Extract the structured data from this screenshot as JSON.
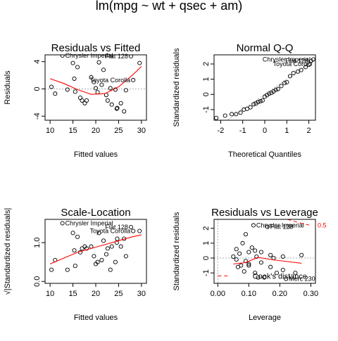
{
  "main_title": "lm(mpg ~ wt + qsec + am)",
  "chart_data": [
    {
      "type": "scatter",
      "title": "Residuals vs Fitted",
      "xlabel": "Fitted values",
      "ylabel": "Residuals",
      "xlim": [
        8.9,
        31.1
      ],
      "ylim": [
        -4.6,
        5.0
      ],
      "xticks": [
        10,
        15,
        20,
        25,
        30
      ],
      "yticks": [
        -4,
        0,
        4
      ],
      "ref_line": {
        "y": 0,
        "style": "dotted"
      },
      "points": [
        {
          "x": 10.3,
          "y": 0.3
        },
        {
          "x": 11.1,
          "y": -0.7
        },
        {
          "x": 12.7,
          "y": 4.9,
          "label": "Chrysler Imperial"
        },
        {
          "x": 13.8,
          "y": -0.1
        },
        {
          "x": 15.0,
          "y": 3.8
        },
        {
          "x": 15.3,
          "y": 1.5
        },
        {
          "x": 15.5,
          "y": -0.4
        },
        {
          "x": 16.0,
          "y": 3.2
        },
        {
          "x": 16.6,
          "y": -1.3
        },
        {
          "x": 17.0,
          "y": -1.7
        },
        {
          "x": 17.6,
          "y": -2.1
        },
        {
          "x": 18.0,
          "y": -1.7
        },
        {
          "x": 19.0,
          "y": 1.7
        },
        {
          "x": 19.6,
          "y": 1.0
        },
        {
          "x": 20.0,
          "y": 0.1
        },
        {
          "x": 20.4,
          "y": -0.5
        },
        {
          "x": 20.7,
          "y": 3.9
        },
        {
          "x": 21.3,
          "y": 0.6
        },
        {
          "x": 21.7,
          "y": 2.8
        },
        {
          "x": 22.3,
          "y": -0.9
        },
        {
          "x": 22.6,
          "y": -1.7
        },
        {
          "x": 23.2,
          "y": 0.1
        },
        {
          "x": 23.5,
          "y": -2.3
        },
        {
          "x": 24.3,
          "y": -0.1
        },
        {
          "x": 24.6,
          "y": -2.9
        },
        {
          "x": 24.7,
          "y": -2.8
        },
        {
          "x": 25.5,
          "y": -2.1
        },
        {
          "x": 26.2,
          "y": -3.3
        },
        {
          "x": 26.6,
          "y": -0.2
        },
        {
          "x": 27.7,
          "y": 4.8,
          "label": "Fiat 128"
        },
        {
          "x": 28.2,
          "y": 1.3,
          "label": "Toyota Corolla"
        },
        {
          "x": 29.6,
          "y": 3.8
        }
      ],
      "smooth": {
        "x": [
          10,
          13,
          16,
          19,
          22,
          25,
          28,
          30
        ],
        "y": [
          1.5,
          0.8,
          -0.1,
          -0.8,
          -0.7,
          0.3,
          2.0,
          3.3
        ]
      }
    },
    {
      "type": "scatter",
      "title": "Normal Q-Q",
      "xlabel": "Theoretical Quantiles",
      "ylabel": "Standardized residuals",
      "xlim": [
        -2.3,
        2.3
      ],
      "ylim": [
        -1.7,
        2.6
      ],
      "xticks": [
        -2,
        -1,
        0,
        1,
        2
      ],
      "yticks": [
        -1,
        0,
        1,
        2
      ],
      "ref_line": {
        "slope": 1,
        "intercept": 0,
        "style": "dotted"
      },
      "points": [
        {
          "x": -2.2,
          "y": -1.55
        },
        {
          "x": -1.8,
          "y": -1.4
        },
        {
          "x": -1.5,
          "y": -1.3
        },
        {
          "x": -1.3,
          "y": -1.3
        },
        {
          "x": -1.1,
          "y": -1.2
        },
        {
          "x": -0.95,
          "y": -1.0
        },
        {
          "x": -0.8,
          "y": -0.95
        },
        {
          "x": -0.65,
          "y": -0.85
        },
        {
          "x": -0.5,
          "y": -0.65
        },
        {
          "x": -0.4,
          "y": -0.6
        },
        {
          "x": -0.3,
          "y": -0.5
        },
        {
          "x": -0.2,
          "y": -0.45
        },
        {
          "x": -0.1,
          "y": -0.4
        },
        {
          "x": 0.0,
          "y": -0.15
        },
        {
          "x": 0.1,
          "y": -0.05
        },
        {
          "x": 0.2,
          "y": 0.05
        },
        {
          "x": 0.3,
          "y": 0.1
        },
        {
          "x": 0.4,
          "y": 0.2
        },
        {
          "x": 0.5,
          "y": 0.3
        },
        {
          "x": 0.6,
          "y": 0.35
        },
        {
          "x": 0.75,
          "y": 0.55
        },
        {
          "x": 0.9,
          "y": 0.75
        },
        {
          "x": 1.0,
          "y": 0.8
        },
        {
          "x": 1.15,
          "y": 1.2
        },
        {
          "x": 1.3,
          "y": 1.4
        },
        {
          "x": 1.5,
          "y": 1.5
        },
        {
          "x": 1.65,
          "y": 1.6
        },
        {
          "x": 1.85,
          "y": 1.8
        },
        {
          "x": 2.0,
          "y": 1.95
        },
        {
          "x": 2.05,
          "y": 2.0,
          "label": "Toyota Coro"
        },
        {
          "x": 2.1,
          "y": 2.2,
          "label": "Fiat 128"
        },
        {
          "x": 2.2,
          "y": 2.3,
          "label": "Chrysler Imperial"
        }
      ]
    },
    {
      "type": "scatter",
      "title": "Scale-Location",
      "xlabel": "Fitted values",
      "ylabel": "√|Standardized residuals|",
      "xlim": [
        8.9,
        31.1
      ],
      "ylim": [
        -0.05,
        1.6
      ],
      "xticks": [
        10,
        15,
        20,
        25,
        30
      ],
      "yticks": [
        0.0,
        1.0
      ],
      "points": [
        {
          "x": 10.3,
          "y": 0.3
        },
        {
          "x": 11.1,
          "y": 0.55
        },
        {
          "x": 12.7,
          "y": 1.5,
          "label": "Chrysler Imperial"
        },
        {
          "x": 13.8,
          "y": 0.3
        },
        {
          "x": 15.0,
          "y": 1.25
        },
        {
          "x": 15.3,
          "y": 0.8
        },
        {
          "x": 15.5,
          "y": 0.4
        },
        {
          "x": 16.0,
          "y": 1.15
        },
        {
          "x": 16.6,
          "y": 0.75
        },
        {
          "x": 17.0,
          "y": 0.85
        },
        {
          "x": 17.6,
          "y": 0.9
        },
        {
          "x": 18.0,
          "y": 0.85
        },
        {
          "x": 19.0,
          "y": 0.9
        },
        {
          "x": 19.6,
          "y": 0.65
        },
        {
          "x": 20.0,
          "y": 0.45
        },
        {
          "x": 20.4,
          "y": 0.5
        },
        {
          "x": 20.7,
          "y": 1.25
        },
        {
          "x": 21.3,
          "y": 0.55
        },
        {
          "x": 21.7,
          "y": 1.05
        },
        {
          "x": 22.3,
          "y": 0.7
        },
        {
          "x": 22.6,
          "y": 0.85
        },
        {
          "x": 23.2,
          "y": 0.3
        },
        {
          "x": 23.5,
          "y": 0.9
        },
        {
          "x": 24.3,
          "y": 0.5
        },
        {
          "x": 24.6,
          "y": 1.0
        },
        {
          "x": 24.7,
          "y": 1.1
        },
        {
          "x": 25.5,
          "y": 0.9
        },
        {
          "x": 26.2,
          "y": 1.1
        },
        {
          "x": 26.6,
          "y": 0.65
        },
        {
          "x": 27.7,
          "y": 1.4,
          "label": "Fiat 128"
        },
        {
          "x": 28.2,
          "y": 1.3,
          "label": "Toyota Corolla"
        },
        {
          "x": 29.6,
          "y": 1.3
        }
      ],
      "smooth": {
        "x": [
          10,
          13,
          16,
          19,
          22,
          25,
          28,
          30
        ],
        "y": [
          0.45,
          0.6,
          0.75,
          0.85,
          0.95,
          1.05,
          1.15,
          1.2
        ]
      }
    },
    {
      "type": "scatter",
      "title": "Residuals vs Leverage",
      "xlabel": "Leverage",
      "ylabel": "Standardized residuals",
      "xlim": [
        -0.012,
        0.315
      ],
      "ylim": [
        -1.7,
        2.6
      ],
      "xticks": [
        0.0,
        0.1,
        0.2,
        0.3
      ],
      "xtick_labels": [
        "0.00",
        "0.10",
        "0.20",
        "0.30"
      ],
      "yticks": [
        -1,
        0,
        1,
        2
      ],
      "ref_line": {
        "y": 0,
        "style": "dotted"
      },
      "cooks_contour_label": "0.5",
      "cooks_legend": "Cook's distance",
      "points": [
        {
          "x": 0.05,
          "y": 0.1
        },
        {
          "x": 0.06,
          "y": 0.6
        },
        {
          "x": 0.065,
          "y": -0.6
        },
        {
          "x": 0.07,
          "y": 0.3
        },
        {
          "x": 0.075,
          "y": -0.5
        },
        {
          "x": 0.08,
          "y": 1.0
        },
        {
          "x": 0.085,
          "y": -0.9
        },
        {
          "x": 0.09,
          "y": 1.6
        },
        {
          "x": 0.1,
          "y": -0.5
        },
        {
          "x": 0.1,
          "y": 0.4
        },
        {
          "x": 0.1,
          "y": -0.4
        },
        {
          "x": 0.11,
          "y": 0.7
        },
        {
          "x": 0.115,
          "y": 2.2,
          "label": "Chrysler Imperial"
        },
        {
          "x": 0.12,
          "y": -1.0
        },
        {
          "x": 0.125,
          "y": 0.1
        },
        {
          "x": 0.13,
          "y": -1.3
        },
        {
          "x": 0.14,
          "y": 0.4
        },
        {
          "x": 0.15,
          "y": -1.3
        },
        {
          "x": 0.16,
          "y": 2.1,
          "label": "Fiat 128"
        },
        {
          "x": 0.17,
          "y": 0.2
        },
        {
          "x": 0.17,
          "y": -0.6
        },
        {
          "x": 0.18,
          "y": 0.0
        },
        {
          "x": 0.19,
          "y": -1.0
        },
        {
          "x": 0.21,
          "y": 0.1
        },
        {
          "x": 0.21,
          "y": -0.8
        },
        {
          "x": 0.22,
          "y": -1.4,
          "label": "Merc 230"
        },
        {
          "x": 0.25,
          "y": -1.0
        },
        {
          "x": 0.27,
          "y": 0.2
        },
        {
          "x": 0.06,
          "y": -0.1
        },
        {
          "x": 0.09,
          "y": -0.2
        },
        {
          "x": 0.12,
          "y": 0.5
        },
        {
          "x": 0.14,
          "y": -0.3
        }
      ],
      "smooth": {
        "x": [
          0.05,
          0.09,
          0.13,
          0.17,
          0.21,
          0.25,
          0.27
        ],
        "y": [
          -0.4,
          -0.3,
          0.05,
          -0.1,
          -0.2,
          -0.3,
          -0.35
        ]
      },
      "cooks_upper": {
        "x": [
          0.225,
          0.25,
          0.275,
          0.3
        ],
        "y": [
          2.6,
          2.45,
          2.3,
          2.2
        ]
      },
      "cooks_lower": {
        "x": [
          0.0,
          0.015,
          0.04
        ],
        "y": [
          -1.2,
          -1.2,
          -1.2
        ]
      }
    }
  ]
}
